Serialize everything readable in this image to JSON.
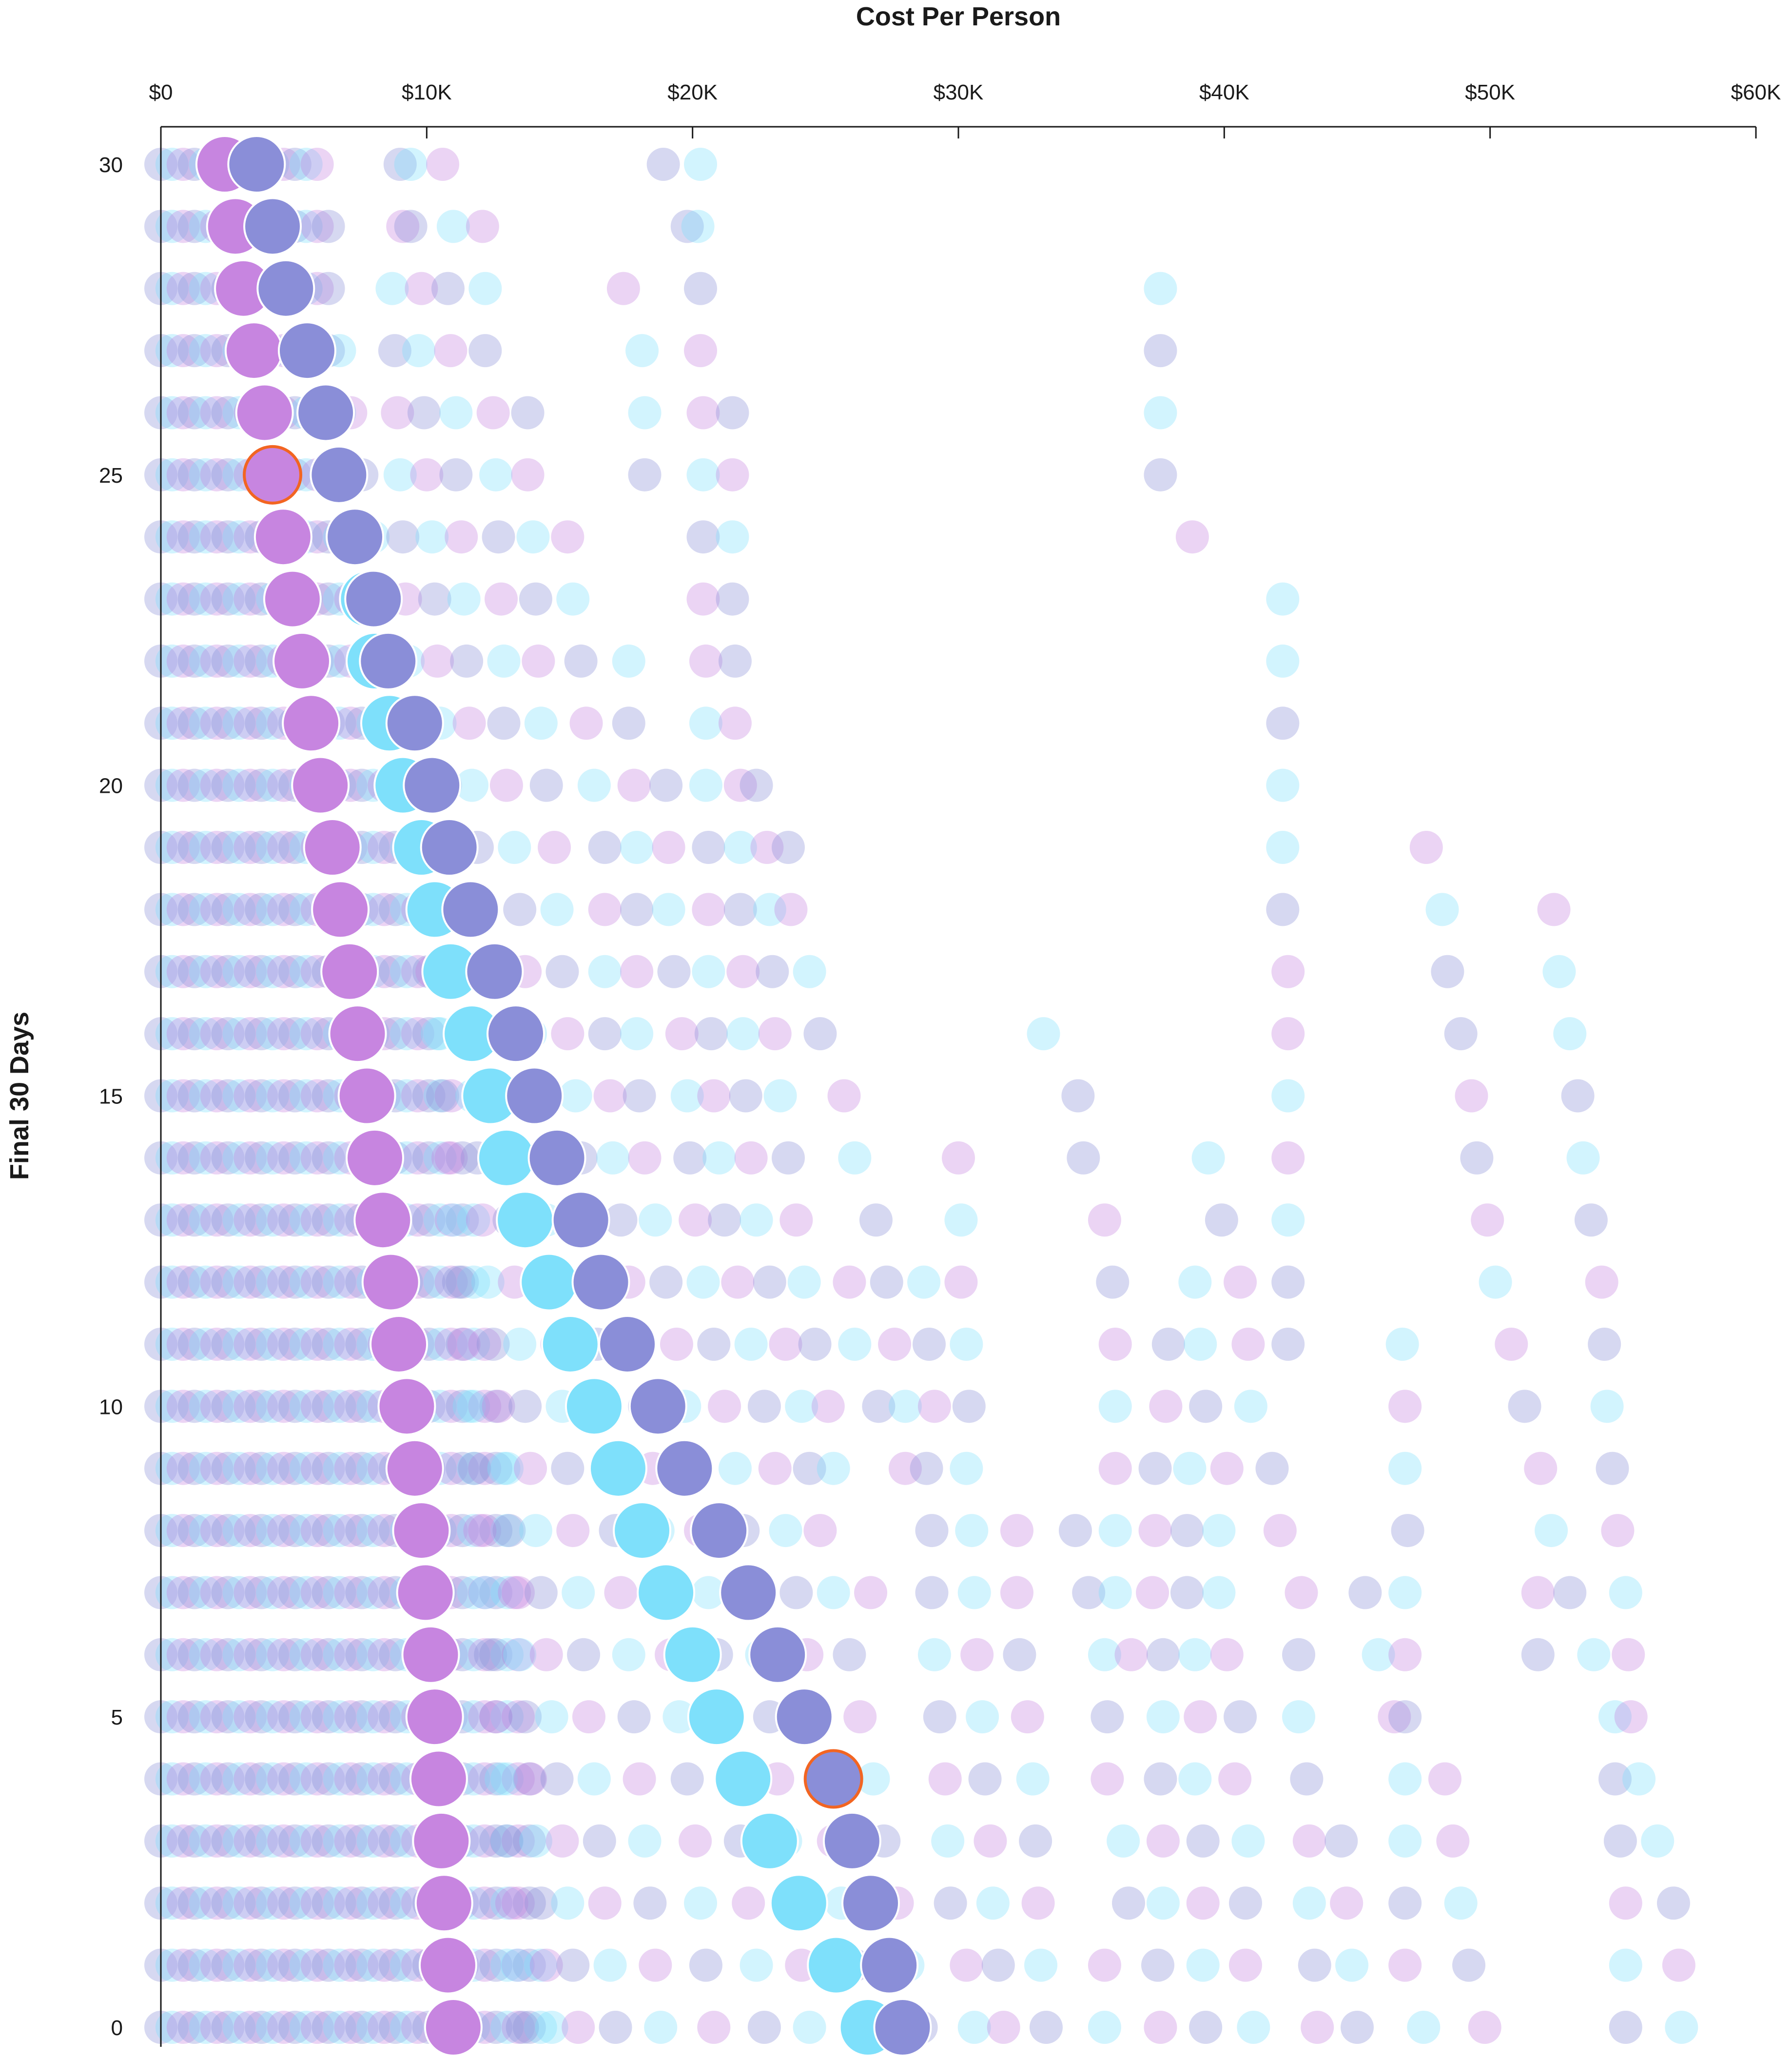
{
  "chart_data": {
    "type": "scatter",
    "xlabel": "Cost Per Person",
    "ylabel": "Final 30 Days",
    "x_ticks": [
      "$0",
      "$10K",
      "$20K",
      "$30K",
      "$40K",
      "$50K",
      "$60K"
    ],
    "x_tick_values": [
      0,
      10000,
      20000,
      30000,
      40000,
      50000,
      60000
    ],
    "y_ticks": [
      "0",
      "5",
      "10",
      "15",
      "20",
      "25",
      "30"
    ],
    "y_tick_values": [
      0,
      5,
      10,
      15,
      20,
      25,
      30
    ],
    "xlim": [
      0,
      60000
    ],
    "ylim": [
      0,
      30
    ],
    "x_axis_position": "top",
    "grid": false,
    "colors": {
      "purple": "#c785e0",
      "indigo": "#8a8ed8",
      "cyan": "#7ee0fb",
      "highlight_outline": "#f26522",
      "axis": "#1a1a1a"
    },
    "series": [
      {
        "color_key": "purple",
        "day": [
          30,
          29,
          28,
          27,
          26,
          25,
          24,
          23,
          22,
          21,
          20,
          19,
          18,
          17,
          16,
          15,
          14,
          13,
          12,
          11,
          10,
          9,
          8,
          7,
          6,
          5,
          4,
          3,
          2,
          1,
          0
        ],
        "cost": [
          2400,
          2800,
          3100,
          3500,
          3900,
          4200,
          4600,
          4950,
          5300,
          5650,
          6000,
          6450,
          6750,
          7100,
          7400,
          7750,
          8050,
          8350,
          8650,
          8950,
          9250,
          9550,
          9800,
          9950,
          10150,
          10300,
          10450,
          10550,
          10650,
          10800,
          11000
        ]
      },
      {
        "color_key": "indigo",
        "day": [
          30,
          29,
          28,
          27,
          26,
          25,
          24,
          23,
          22,
          21,
          20,
          19,
          18,
          17,
          16,
          15,
          14,
          13,
          12,
          11,
          10,
          9,
          8,
          7,
          6,
          5,
          4,
          3,
          2,
          1,
          0
        ],
        "cost": [
          3600,
          4200,
          4700,
          5500,
          6200,
          6700,
          7300,
          8000,
          8550,
          9550,
          10200,
          10850,
          11650,
          12550,
          13350,
          14050,
          14900,
          15800,
          16550,
          17550,
          18700,
          19700,
          21000,
          22100,
          23200,
          24200,
          25300,
          26000,
          26700,
          27400,
          27900
        ]
      },
      {
        "color_key": "cyan",
        "day": [
          23,
          22,
          21,
          20,
          19,
          18,
          17,
          16,
          15,
          14,
          13,
          12,
          11,
          10,
          9,
          8,
          7,
          6,
          5,
          4,
          3,
          2,
          1,
          0
        ],
        "cost": [
          7800,
          8050,
          8600,
          9100,
          9800,
          10300,
          10900,
          11700,
          12400,
          13000,
          13700,
          14600,
          15400,
          16300,
          17200,
          18100,
          19000,
          20000,
          20900,
          21900,
          22900,
          24000,
          25400,
          26600
        ]
      }
    ],
    "highlighted_points": [
      {
        "day": 25,
        "cost": 4200,
        "color_key": "purple"
      },
      {
        "day": 4,
        "cost": 25300,
        "color_key": "indigo"
      }
    ],
    "background_clouds": [
      {
        "day": 30,
        "outliers": [
          9000,
          9400,
          10600,
          18900,
          20300
        ]
      },
      {
        "day": 29,
        "outliers": [
          9100,
          9400,
          11000,
          12100,
          19800,
          20200
        ]
      },
      {
        "day": 28,
        "outliers": [
          8700,
          9800,
          10800,
          12200,
          17400,
          20300,
          37600
        ]
      },
      {
        "day": 27,
        "outliers": [
          8800,
          9700,
          10900,
          12200,
          18100,
          20300,
          37600
        ]
      },
      {
        "day": 26,
        "outliers": [
          8900,
          9900,
          11100,
          12500,
          13800,
          18200,
          20400,
          21500,
          37600
        ]
      },
      {
        "day": 25,
        "outliers": [
          9000,
          10000,
          11100,
          12600,
          13800,
          18200,
          20400,
          21500,
          37600
        ]
      },
      {
        "day": 24,
        "outliers": [
          9100,
          10200,
          11300,
          12700,
          14000,
          15300,
          20400,
          21500,
          38800
        ]
      },
      {
        "day": 23,
        "outliers": [
          9200,
          10300,
          11400,
          12800,
          14100,
          15500,
          20400,
          21500,
          42200
        ]
      },
      {
        "day": 22,
        "outliers": [
          9300,
          10400,
          11500,
          12900,
          14200,
          15800,
          17600,
          20500,
          21600,
          42200
        ]
      },
      {
        "day": 21,
        "outliers": [
          9400,
          10500,
          11600,
          12900,
          14300,
          16000,
          17600,
          20500,
          21600,
          42200
        ]
      },
      {
        "day": 20,
        "outliers": [
          9600,
          10700,
          11700,
          13000,
          14500,
          16300,
          17800,
          19000,
          20500,
          21800,
          22400,
          42200
        ]
      },
      {
        "day": 19,
        "outliers": [
          9800,
          10900,
          11900,
          13300,
          14800,
          16700,
          17900,
          19100,
          20600,
          21800,
          22800,
          23600,
          42200,
          47600
        ]
      },
      {
        "day": 18,
        "outliers": [
          10000,
          11100,
          12100,
          13500,
          14900,
          16700,
          17900,
          19100,
          20600,
          21800,
          22900,
          23700,
          42200,
          48200,
          52400
        ]
      },
      {
        "day": 17,
        "outliers": [
          10200,
          11300,
          12300,
          13700,
          15100,
          16700,
          17900,
          19300,
          20600,
          21900,
          23000,
          24400,
          42400,
          48400,
          52600
        ]
      },
      {
        "day": 16,
        "outliers": [
          10400,
          11500,
          12500,
          13900,
          15300,
          16700,
          17900,
          19600,
          20700,
          21900,
          23100,
          24800,
          33200,
          42400,
          48900,
          53000
        ]
      },
      {
        "day": 15,
        "outliers": [
          10600,
          11700,
          12700,
          14100,
          15600,
          16900,
          18000,
          19800,
          20800,
          22000,
          23300,
          25700,
          34500,
          42400,
          49300,
          53300
        ]
      },
      {
        "day": 14,
        "outliers": [
          10800,
          11900,
          12900,
          14300,
          15800,
          17000,
          18200,
          19900,
          21000,
          22200,
          23600,
          26100,
          30000,
          34700,
          39400,
          42400,
          49500,
          53500
        ]
      },
      {
        "day": 13,
        "outliers": [
          11000,
          12100,
          13100,
          14500,
          16000,
          17300,
          18600,
          20100,
          21200,
          22400,
          23900,
          26900,
          30100,
          35500,
          39900,
          42400,
          49900,
          53800
        ]
      },
      {
        "day": 12,
        "outliers": [
          11200,
          12300,
          13300,
          14700,
          16200,
          17600,
          19000,
          20400,
          21700,
          22900,
          24200,
          25900,
          27300,
          28700,
          30100,
          35800,
          38900,
          40600,
          42400,
          50200,
          54200
        ]
      },
      {
        "day": 11,
        "outliers": [
          11400,
          12500,
          13500,
          14900,
          16400,
          17900,
          19400,
          20800,
          22200,
          23500,
          24600,
          26100,
          27600,
          28900,
          30300,
          35900,
          37900,
          39100,
          40900,
          42400,
          46700,
          50800,
          54300
        ]
      },
      {
        "day": 10,
        "outliers": [
          11600,
          12700,
          13700,
          15100,
          16700,
          18200,
          19700,
          21200,
          22700,
          24100,
          25100,
          27000,
          28000,
          29100,
          30400,
          35900,
          37800,
          39300,
          41000,
          46800,
          51300,
          54400
        ]
      },
      {
        "day": 9,
        "outliers": [
          11800,
          12900,
          13900,
          15300,
          16900,
          18500,
          20000,
          21600,
          23100,
          24400,
          25300,
          28000,
          28800,
          30300,
          35900,
          37400,
          38700,
          40100,
          41800,
          46800,
          51900,
          54600
        ]
      },
      {
        "day": 8,
        "outliers": [
          12000,
          13100,
          14100,
          15500,
          17100,
          18700,
          20300,
          21900,
          23500,
          24800,
          29000,
          30500,
          32200,
          34400,
          35900,
          37400,
          38600,
          39800,
          42100,
          46900,
          52300,
          54800
        ]
      },
      {
        "day": 7,
        "outliers": [
          12200,
          13300,
          14300,
          15700,
          17300,
          18900,
          20600,
          22300,
          23900,
          25300,
          26700,
          29000,
          30600,
          32200,
          34900,
          35900,
          37300,
          38600,
          39800,
          42900,
          45300,
          46800,
          51800,
          53000,
          55100
        ]
      },
      {
        "day": 6,
        "outliers": [
          12400,
          13500,
          14500,
          15900,
          17600,
          19200,
          20900,
          22600,
          24300,
          25900,
          29100,
          30700,
          32300,
          35500,
          36500,
          37700,
          38900,
          40100,
          42800,
          45800,
          46800,
          51800,
          53900,
          55200
        ]
      },
      {
        "day": 5,
        "outliers": [
          12600,
          13700,
          14700,
          16100,
          17800,
          19500,
          21200,
          22900,
          24600,
          26300,
          29300,
          30900,
          32600,
          35600,
          37700,
          39100,
          40600,
          42800,
          46400,
          46800,
          54700,
          55300
        ]
      },
      {
        "day": 4,
        "outliers": [
          12800,
          13900,
          14900,
          16300,
          18000,
          19800,
          21500,
          23200,
          24900,
          26800,
          29500,
          31000,
          32800,
          35600,
          37600,
          38900,
          40400,
          43100,
          46800,
          48300,
          54700,
          55600
        ]
      },
      {
        "day": 3,
        "outliers": [
          13000,
          14100,
          15100,
          16500,
          18200,
          20100,
          21800,
          23500,
          25300,
          27200,
          29600,
          31200,
          32900,
          36200,
          37700,
          39200,
          40900,
          43200,
          44400,
          46800,
          48600,
          54900,
          56300
        ]
      },
      {
        "day": 2,
        "outliers": [
          13200,
          14300,
          15300,
          16700,
          18400,
          20300,
          22100,
          23800,
          25600,
          27700,
          29700,
          31300,
          33000,
          36400,
          37700,
          39200,
          40800,
          43200,
          44600,
          46800,
          48900,
          55100,
          56900
        ]
      },
      {
        "day": 1,
        "outliers": [
          13400,
          14500,
          15500,
          16900,
          18600,
          20500,
          22400,
          24100,
          26100,
          28100,
          30300,
          31500,
          33100,
          35500,
          37500,
          39200,
          40800,
          43400,
          44800,
          46800,
          49200,
          55100,
          57100
        ]
      },
      {
        "day": 0,
        "outliers": [
          13600,
          14700,
          15700,
          17100,
          18800,
          20800,
          22700,
          24400,
          26400,
          28600,
          30600,
          31700,
          33300,
          35500,
          37600,
          39300,
          41100,
          43500,
          45000,
          47500,
          49800,
          55100,
          57200
        ]
      }
    ]
  }
}
